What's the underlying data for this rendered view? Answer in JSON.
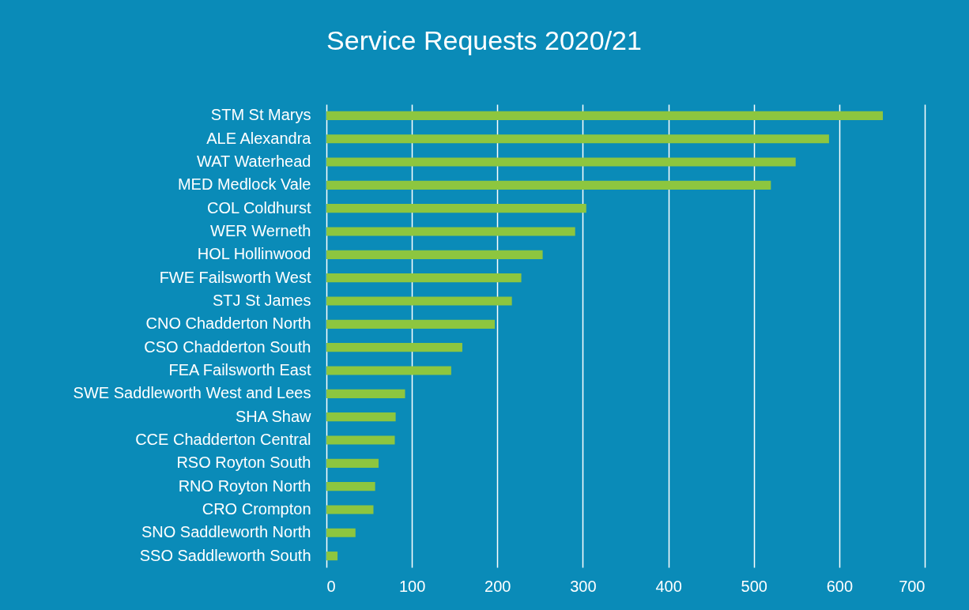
{
  "chart_data": {
    "type": "bar",
    "orientation": "horizontal",
    "title": "Service Requests 2020/21",
    "categories": [
      "STM  St Marys",
      "ALE  Alexandra",
      "WAT  Waterhead",
      "MED  Medlock Vale",
      "COL  Coldhurst",
      "WER  Werneth",
      "HOL  Hollinwood",
      "FWE  Failsworth West",
      "STJ  St James",
      "CNO  Chadderton North",
      "CSO  Chadderton South",
      "FEA  Failsworth East",
      "SWE  Saddleworth West and Lees",
      "SHA  Shaw",
      "CCE  Chadderton Central",
      "RSO  Royton South",
      "RNO  Royton North",
      "CRO  Crompton",
      "SNO  Saddleworth North",
      "SSO  Saddleworth South"
    ],
    "values": [
      651,
      588,
      549,
      520,
      304,
      291,
      253,
      228,
      217,
      197,
      159,
      146,
      92,
      81,
      80,
      61,
      57,
      55,
      34,
      13
    ],
    "color": "#8dc63f",
    "xlim": [
      0,
      700
    ],
    "xticks": [
      0,
      100,
      200,
      300,
      400,
      500,
      600,
      700
    ],
    "grid": true
  }
}
